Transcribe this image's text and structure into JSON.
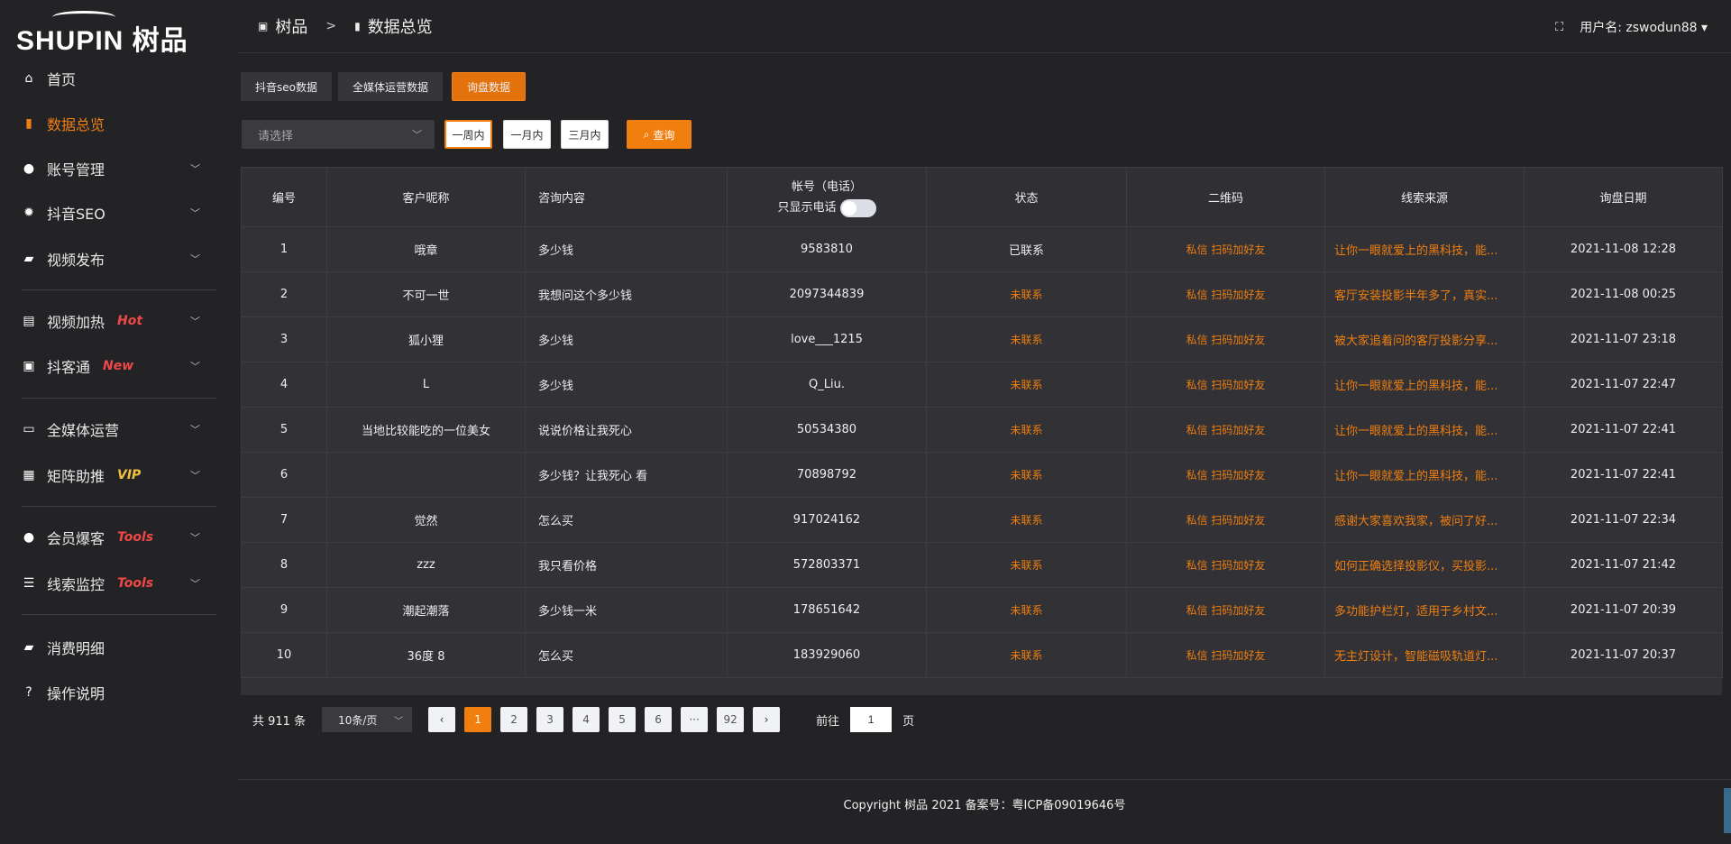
{
  "logo": {
    "text": "SHUPIN 树品"
  },
  "sidebar": {
    "items": [
      {
        "label": "首页",
        "icon": "home-icon",
        "glyph": "⌂"
      },
      {
        "label": "数据总览",
        "icon": "bar-chart-icon",
        "glyph": "▮",
        "active": true
      },
      {
        "label": "账号管理",
        "icon": "user-icon",
        "glyph": "●",
        "chevron": true
      },
      {
        "label": "抖音SEO",
        "icon": "gear-icon",
        "glyph": "✹",
        "chevron": true
      },
      {
        "label": "视频发布",
        "icon": "video-icon",
        "glyph": "▰",
        "chevron": true
      },
      {
        "label": "视频加热",
        "icon": "flame-icon",
        "glyph": "▤",
        "badge": "Hot",
        "chevron": true
      },
      {
        "label": "抖客通",
        "icon": "chat-icon",
        "glyph": "▣",
        "badge": "New",
        "chevron": true
      },
      {
        "label": "全媒体运营",
        "icon": "monitor-icon",
        "glyph": "▭",
        "chevron": true
      },
      {
        "label": "矩阵助推",
        "icon": "grid-icon",
        "glyph": "▦",
        "badge": "VIP",
        "chevron": true
      },
      {
        "label": "会员爆客",
        "icon": "member-icon",
        "glyph": "●",
        "badge": "Tools",
        "chevron": true
      },
      {
        "label": "线索监控",
        "icon": "sliders-icon",
        "glyph": "☰",
        "badge": "Tools",
        "chevron": true
      },
      {
        "label": "消费明细",
        "icon": "wallet-icon",
        "glyph": "▰"
      },
      {
        "label": "操作说明",
        "icon": "help-icon",
        "glyph": "?"
      }
    ]
  },
  "header": {
    "breadcrumb": [
      "树品",
      "数据总览"
    ],
    "user_label": "用户名: zswodun88"
  },
  "tabs": [
    "抖音seo数据",
    "全媒体运营数据",
    "询盘数据"
  ],
  "filter": {
    "select_placeholder": "请选择",
    "ranges": [
      "一周内",
      "一月内",
      "三月内"
    ],
    "query": "查询"
  },
  "table": {
    "headers": [
      "编号",
      "客户昵称",
      "咨询内容",
      "帐号（电话）",
      "状态",
      "二维码",
      "线索来源",
      "询盘日期"
    ],
    "phone_toggle_label": "只显示电话",
    "qr_text": "私信 扫码加好友",
    "rows": [
      [
        "1",
        "哦章",
        "多少钱",
        "9583810",
        "已联系",
        "让你一眼就爱上的黑科技，能...",
        "2021-11-08 12:28"
      ],
      [
        "2",
        "不可一世",
        "我想问这个多少钱",
        "2097344839",
        "未联系",
        "客厅安装投影半年多了，真实...",
        "2021-11-08 00:25"
      ],
      [
        "3",
        "狐小狸",
        "多少钱",
        "love___1215",
        "未联系",
        "被大家追着问的客厅投影分享...",
        "2021-11-07 23:18"
      ],
      [
        "4",
        "L",
        "多少钱",
        "Q_Liu.",
        "未联系",
        "让你一眼就爱上的黑科技，能...",
        "2021-11-07 22:47"
      ],
      [
        "5",
        "当地比较能吃的一位美女",
        "说说价格让我死心",
        "50534380",
        "未联系",
        "让你一眼就爱上的黑科技，能...",
        "2021-11-07 22:41"
      ],
      [
        "6",
        "",
        "多少钱？让我死心 看",
        "70898792",
        "未联系",
        "让你一眼就爱上的黑科技，能...",
        "2021-11-07 22:41"
      ],
      [
        "7",
        "觉然",
        "怎么买",
        "917024162",
        "未联系",
        "感谢大家喜欢我家，被问了好...",
        "2021-11-07 22:34"
      ],
      [
        "8",
        "zzz",
        "我只看价格",
        "572803371",
        "未联系",
        "如何正确选择投影仪，买投影...",
        "2021-11-07 21:42"
      ],
      [
        "9",
        "潮起潮落",
        "多少钱一米",
        "178651642",
        "未联系",
        "多功能护栏灯，适用于乡村文...",
        "2021-11-07 20:39"
      ],
      [
        "10",
        "36度 8",
        "怎么买",
        "183929060",
        "未联系",
        "无主灯设计，智能磁吸轨道灯...",
        "2021-11-07 20:37"
      ]
    ]
  },
  "pagination": {
    "total": "共 911 条",
    "page_size": "10条/页",
    "pages": [
      "1",
      "2",
      "3",
      "4",
      "5",
      "6",
      "···",
      "92"
    ],
    "current": "1",
    "goto_label": "前往",
    "goto_value": "1",
    "page_suffix": "页"
  },
  "footer": {
    "text": "Copyright 树品 2021 备案号：粤ICP备09019646号"
  },
  "colors": {
    "accent": "#f07f10",
    "badge_red": "#f04848",
    "badge_vip": "#f0c040",
    "background": "#232326",
    "table": "#313136"
  }
}
